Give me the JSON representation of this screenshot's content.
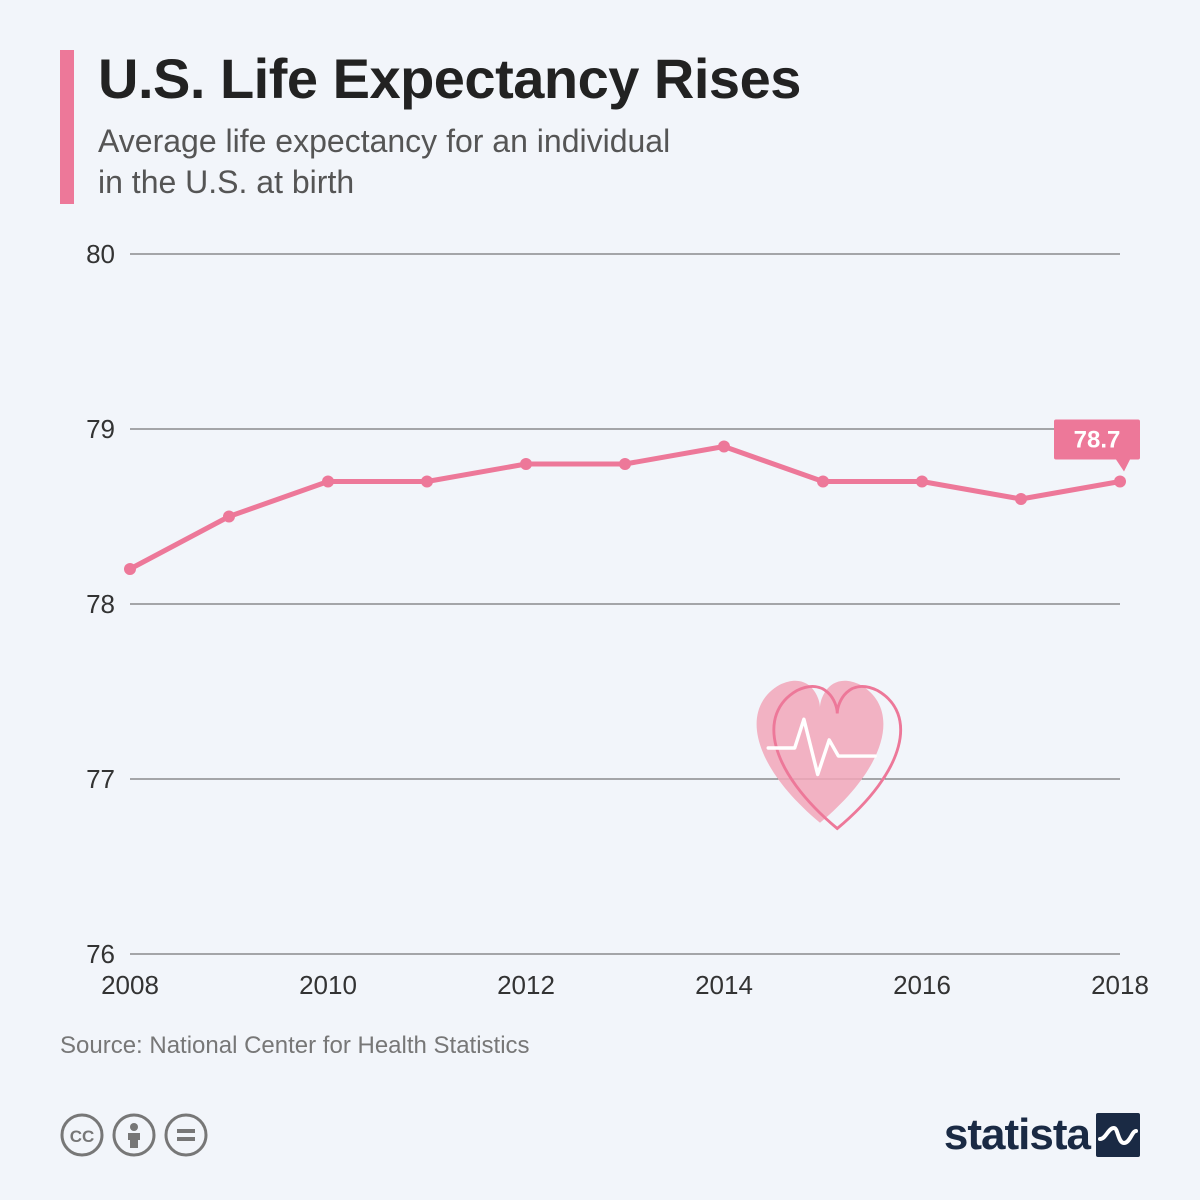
{
  "title": "U.S. Life Expectancy Rises",
  "subtitle_line1": "Average life expectancy for an individual",
  "subtitle_line2": "in the U.S. at birth",
  "source": "Source: National Center for Health Statistics",
  "brand": "statista",
  "chart": {
    "type": "line",
    "background_color": "#f2f5fa",
    "grid_color": "#555555",
    "line_color": "#ed7899",
    "line_width": 5,
    "marker_color": "#ed7899",
    "marker_radius": 6,
    "ylim": [
      76,
      80
    ],
    "y_ticks": [
      76,
      77,
      78,
      79,
      80
    ],
    "x_ticks": [
      2008,
      2010,
      2012,
      2014,
      2016,
      2018
    ],
    "x_values": [
      2008,
      2009,
      2010,
      2011,
      2012,
      2013,
      2014,
      2015,
      2016,
      2017,
      2018
    ],
    "y_values": [
      78.2,
      78.5,
      78.7,
      78.7,
      78.8,
      78.8,
      78.9,
      78.7,
      78.7,
      78.6,
      78.7
    ],
    "callout": {
      "value": "78.7",
      "bg": "#ed7899",
      "text": "#ffffff"
    },
    "heart_fill": "#f2a6b8",
    "heart_stroke": "#ed7899",
    "axis_fontsize": 26,
    "title_fontsize": 56,
    "subtitle_fontsize": 32
  }
}
